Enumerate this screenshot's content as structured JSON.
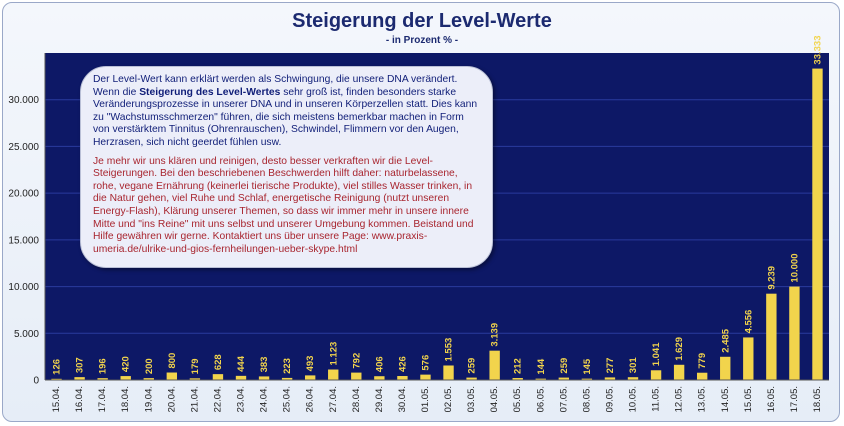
{
  "chart_data": {
    "type": "bar",
    "title": "Steigerung der Level-Werte",
    "subtitle": "- in Prozent % -",
    "xlabel": "",
    "ylabel": "",
    "ylim": [
      0,
      35000
    ],
    "grid": true,
    "colors": {
      "bar": "#f2d44c",
      "plot_bg": "#0d1866",
      "label": "#f2d44c",
      "grid": "#2a3a9e"
    },
    "yticks": [
      {
        "value": 0,
        "label": "0"
      },
      {
        "value": 5000,
        "label": "5.000"
      },
      {
        "value": 10000,
        "label": "10.000"
      },
      {
        "value": 15000,
        "label": "15.000"
      },
      {
        "value": 20000,
        "label": "20.000"
      },
      {
        "value": 25000,
        "label": "25.000"
      },
      {
        "value": 30000,
        "label": "30.000"
      }
    ],
    "categories": [
      "15.04.",
      "16.04.",
      "17.04.",
      "18.04.",
      "19.04.",
      "20.04.",
      "21.04.",
      "22.04.",
      "23.04.",
      "24.04.",
      "25.04.",
      "26.04.",
      "27.04.",
      "28.04.",
      "29.04.",
      "30.04.",
      "01.05.",
      "02.05.",
      "03.05.",
      "04.05.",
      "05.05.",
      "06.05.",
      "07.05.",
      "08.05.",
      "09.05.",
      "10.05.",
      "11.05.",
      "12.05.",
      "13.05.",
      "14.05.",
      "15.05.",
      "16.05.",
      "17.05.",
      "18.05."
    ],
    "values": [
      126,
      307,
      196,
      420,
      200,
      800,
      179,
      628,
      444,
      383,
      223,
      493,
      1123,
      792,
      406,
      426,
      576,
      1553,
      259,
      3139,
      212,
      144,
      259,
      145,
      277,
      301,
      1041,
      1629,
      779,
      2485,
      4556,
      9239,
      10000,
      33333
    ],
    "value_labels": [
      "126",
      "307",
      "196",
      "420",
      "200",
      "800",
      "179",
      "628",
      "444",
      "383",
      "223",
      "493",
      "1.123",
      "792",
      "406",
      "426",
      "576",
      "1.553",
      "259",
      "3.139",
      "212",
      "144",
      "259",
      "145",
      "277",
      "301",
      "1.041",
      "1.629",
      "779",
      "2.485",
      "4.556",
      "9.239",
      "10.000",
      "33.333"
    ]
  },
  "note": {
    "p1_before": "Der Level-Wert kann erklärt werden als Schwingung, die unsere DNA verändert. Wenn die ",
    "p1_bold": "Steigerung des Level-Wertes",
    "p1_after": " sehr groß ist, finden besonders starke Veränderungsprozesse in unserer DNA und in unseren Körperzellen statt. Dies kann zu \"Wachstumsschmerzen\" führen, die sich meistens bemerkbar machen in Form von verstärktem Tinnitus (Ohrenrauschen), Schwindel, Flimmern vor den Augen, Herzrasen, sich nicht geerdet fühlen usw.",
    "p2": "Je mehr wir uns klären und reinigen, desto besser verkraften wir die Level-Steigerungen. Bei den beschriebenen Beschwerden hilft daher: naturbelassene, rohe, vegane Ernährung (keinerlei tierische Produkte), viel stilles Wasser trinken, in die Natur gehen, viel Ruhe und Schlaf, energetische Reinigung (nutzt unseren Energy-Flash), Klärung unserer Themen, so dass wir immer mehr in unsere innere Mitte und \"ins Reine\" mit uns selbst und unserer Umgebung kommen. Beistand und Hilfe gewähren wir gerne. Kontaktiert uns über unsere Page: www.praxis-umeria.de/ulrike-und-gios-fernheilungen-ueber-skype.html"
  }
}
